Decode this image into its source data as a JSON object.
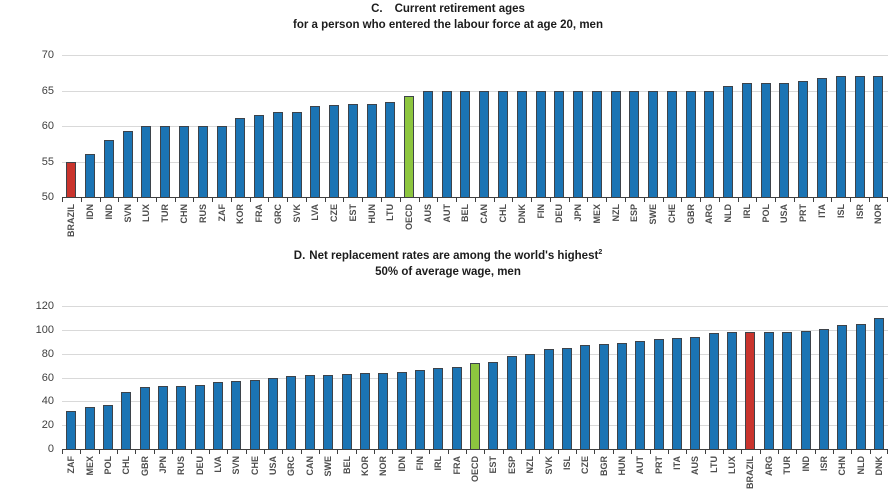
{
  "colors": {
    "bar_blue": "#1b74b4",
    "brazil_red": "#c9342d",
    "oecd_green": "#8dc63f",
    "gridline": "#d9d9d9",
    "axis": "#3f3f3f",
    "tick_label": "#4d4d4d",
    "title": "#1c1c1c"
  },
  "chart_data": [
    {
      "panel_label": "C.",
      "type": "bar",
      "title": "Current retirement ages",
      "subtitle": "for a person who entered the labour force at age 20, men",
      "xlabel": "",
      "ylabel": "",
      "ylim": [
        50,
        70
      ],
      "yticks": [
        50,
        55,
        60,
        65,
        70
      ],
      "grid": true,
      "legend": "none",
      "categories": [
        "BRAZIL",
        "IDN",
        "IND",
        "SVN",
        "LUX",
        "TUR",
        "CHN",
        "RUS",
        "ZAF",
        "KOR",
        "FRA",
        "GRC",
        "SVK",
        "LVA",
        "CZE",
        "EST",
        "HUN",
        "LTU",
        "OECD",
        "AUS",
        "AUT",
        "BEL",
        "CAN",
        "CHL",
        "DNK",
        "FIN",
        "DEU",
        "JPN",
        "MEX",
        "NZL",
        "ESP",
        "SWE",
        "CHE",
        "GBR",
        "ARG",
        "NLD",
        "IRL",
        "POL",
        "USA",
        "PRT",
        "ITA",
        "ISL",
        "ISR",
        "NOR"
      ],
      "values": [
        55,
        56,
        58,
        59.3,
        60,
        60,
        60,
        60,
        60,
        61.2,
        61.6,
        62,
        62,
        62.8,
        63,
        63.1,
        63.1,
        63.4,
        64.3,
        65,
        65,
        65,
        65,
        65,
        65,
        65,
        65,
        65,
        65,
        65,
        65,
        65,
        65,
        65,
        65,
        65.7,
        66,
        66,
        66,
        66.4,
        66.7,
        67,
        67,
        67
      ],
      "highlights": {
        "BRAZIL": "brazil_red",
        "OECD": "oecd_green"
      }
    },
    {
      "panel_label": "D.",
      "type": "bar",
      "title": "Net replacement rates are among the world's highest",
      "title_footnote": "2",
      "subtitle": "50% of average wage, men",
      "xlabel": "",
      "ylabel": "",
      "ylim": [
        0,
        120
      ],
      "yticks": [
        0,
        20,
        40,
        60,
        80,
        100,
        120
      ],
      "grid": true,
      "legend": "none",
      "categories": [
        "ZAF",
        "MEX",
        "POL",
        "CHL",
        "GBR",
        "JPN",
        "RUS",
        "DEU",
        "LVA",
        "SVN",
        "CHE",
        "USA",
        "GRC",
        "CAN",
        "SWE",
        "BEL",
        "KOR",
        "NOR",
        "IDN",
        "FIN",
        "IRL",
        "FRA",
        "OECD",
        "EST",
        "ESP",
        "NZL",
        "SVK",
        "ISL",
        "CZE",
        "BGR",
        "HUN",
        "AUT",
        "PRT",
        "ITA",
        "AUS",
        "LTU",
        "LUX",
        "BRAZIL",
        "ARG",
        "TUR",
        "IND",
        "ISR",
        "CHN",
        "NLD",
        "DNK"
      ],
      "values": [
        32,
        35,
        37,
        48,
        52,
        53,
        53,
        54,
        56,
        57,
        58,
        60,
        61,
        62,
        62,
        63,
        64,
        64,
        65,
        66,
        68,
        69,
        72,
        73,
        78,
        80,
        84,
        85,
        87,
        88,
        89,
        91,
        92,
        93,
        94,
        97,
        98,
        98,
        98,
        98,
        99,
        101,
        104,
        105,
        110
      ],
      "highlights": {
        "BRAZIL": "brazil_red",
        "OECD": "oecd_green"
      }
    }
  ]
}
